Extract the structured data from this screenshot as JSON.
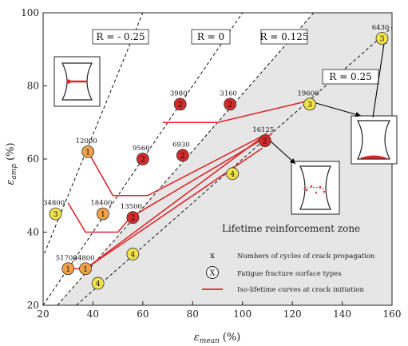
{
  "chart_data": {
    "type": "scatter",
    "xlabel_symbol": "ε",
    "xlabel_sub": "mean",
    "xlabel_unit": "(%)",
    "ylabel_symbol": "ε",
    "ylabel_sub": "amp",
    "ylabel_unit": "(%)",
    "xlim": [
      20,
      160
    ],
    "ylim": [
      20,
      100
    ],
    "xticks": [
      "20",
      "40",
      "60",
      "80",
      "100",
      "120",
      "140",
      "160"
    ],
    "yticks": [
      "20",
      "40",
      "60",
      "80",
      "100"
    ],
    "shaded_zone_label": "Lifetime reinforcement zone",
    "iso_lines": [
      {
        "label": "R = - 0.25",
        "r": -0.25
      },
      {
        "label": "R = 0",
        "r": 0
      },
      {
        "label": "R = 0.125",
        "r": 0.125
      },
      {
        "label": "R = 0.25",
        "r": 0.25
      }
    ],
    "points": [
      {
        "x": 25,
        "y": 45,
        "cycles": "34800",
        "type": "3",
        "color": "#f2e34a"
      },
      {
        "x": 30,
        "y": 30,
        "cycles": "51700",
        "type": "1",
        "color": "#f0a24a"
      },
      {
        "x": 37,
        "y": 30,
        "cycles": "24800",
        "type": "1",
        "color": "#f0a24a"
      },
      {
        "x": 38,
        "y": 62,
        "cycles": "12000",
        "type": "1",
        "color": "#f0a24a"
      },
      {
        "x": 42,
        "y": 26,
        "cycles": "",
        "type": "4",
        "color": "#f2e34a"
      },
      {
        "x": 44,
        "y": 45,
        "cycles": "18400",
        "type": "1",
        "color": "#f0a24a"
      },
      {
        "x": 56,
        "y": 34,
        "cycles": "",
        "type": "4",
        "color": "#f2e34a"
      },
      {
        "x": 56,
        "y": 44,
        "cycles": "13500",
        "type": "2",
        "color": "#d42a2a"
      },
      {
        "x": 60,
        "y": 60,
        "cycles": "9560",
        "type": "2",
        "color": "#d42a2a"
      },
      {
        "x": 76,
        "y": 61,
        "cycles": "6930",
        "type": "2",
        "color": "#d42a2a"
      },
      {
        "x": 75,
        "y": 75,
        "cycles": "3980",
        "type": "2",
        "color": "#d42a2a"
      },
      {
        "x": 95,
        "y": 75,
        "cycles": "3160",
        "type": "2",
        "color": "#d42a2a"
      },
      {
        "x": 96,
        "y": 56,
        "cycles": "",
        "type": "4",
        "color": "#f2e34a"
      },
      {
        "x": 109,
        "y": 65,
        "cycles": "16125",
        "type": "2",
        "color": "#d42a2a"
      },
      {
        "x": 127,
        "y": 75,
        "cycles": "19600",
        "type": "3",
        "color": "#f2e34a"
      },
      {
        "x": 156,
        "y": 93,
        "cycles": "6430",
        "type": "3",
        "color": "#f2e34a"
      }
    ],
    "iso_lifetime_curves": [
      [
        [
          30,
          48
        ],
        [
          37,
          40
        ],
        [
          50,
          40
        ],
        [
          55,
          44
        ],
        [
          112,
          67
        ]
      ],
      [
        [
          38,
          62
        ],
        [
          48,
          50
        ],
        [
          62,
          50
        ],
        [
          110,
          67
        ]
      ],
      [
        [
          30,
          30
        ],
        [
          37,
          30
        ],
        [
          108,
          63
        ]
      ],
      [
        [
          37,
          30
        ],
        [
          108,
          66
        ]
      ],
      [
        [
          68,
          70
        ],
        [
          90,
          70
        ],
        [
          127,
          76
        ]
      ]
    ],
    "legend": [
      {
        "symbol": "x",
        "label": "Numbers of cycles of crack propagation"
      },
      {
        "symbol": "X",
        "label": "Fatigue fracture surface types"
      },
      {
        "symbol": "line",
        "label": "Iso-lifetime curves at crack initiation"
      }
    ],
    "colors": {
      "shade": "#e6e6e6",
      "curve": "#e0262a",
      "arrow": "#000000"
    }
  }
}
